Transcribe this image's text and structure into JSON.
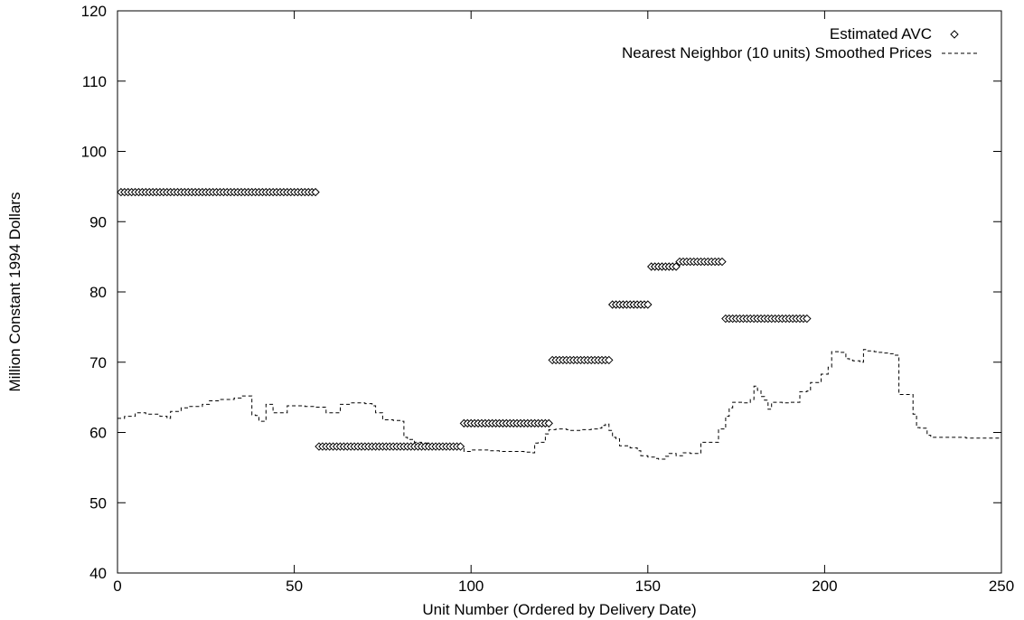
{
  "chart_data": {
    "type": "scatter",
    "title": "",
    "xlabel": "Unit Number (Ordered by Delivery Date)",
    "ylabel": "Million Constant 1994 Dollars",
    "xlim": [
      0,
      250
    ],
    "ylim": [
      40,
      120
    ],
    "xticks": [
      0,
      50,
      100,
      150,
      200,
      250
    ],
    "yticks": [
      40,
      50,
      60,
      70,
      80,
      90,
      100,
      110,
      120
    ],
    "grid": false,
    "legend_position": "top-right",
    "series": [
      {
        "name": "Estimated AVC",
        "style": "points",
        "marker": "diamond",
        "segments": [
          {
            "x_start": 1,
            "x_end": 56,
            "y": 94.2
          },
          {
            "x_start": 57,
            "x_end": 97,
            "y": 58.0
          },
          {
            "x_start": 98,
            "x_end": 122,
            "y": 61.3
          },
          {
            "x_start": 123,
            "x_end": 139,
            "y": 70.3
          },
          {
            "x_start": 140,
            "x_end": 150,
            "y": 78.2
          },
          {
            "x_start": 151,
            "x_end": 158,
            "y": 83.6
          },
          {
            "x_start": 159,
            "x_end": 171,
            "y": 84.3
          },
          {
            "x_start": 172,
            "x_end": 195,
            "y": 76.2
          }
        ]
      },
      {
        "name": "Nearest Neighbor (10 units) Smoothed Prices",
        "style": "dashed-line",
        "x": [
          0,
          2,
          5,
          8,
          12,
          14,
          15,
          18,
          20,
          24,
          26,
          29,
          33,
          35,
          36,
          38,
          39,
          40,
          41,
          42,
          44,
          45,
          48,
          53,
          56,
          57,
          59,
          60,
          63,
          66,
          70,
          72,
          73,
          75,
          76,
          78,
          80,
          81,
          82,
          84,
          86,
          88,
          90,
          92,
          95,
          98,
          100,
          103,
          105,
          108,
          110,
          112,
          115,
          117,
          118,
          119,
          120,
          121,
          122,
          124,
          127,
          128,
          131,
          134,
          136,
          137,
          138,
          139,
          140,
          141,
          142,
          144,
          145,
          147,
          148,
          150,
          152,
          153,
          155,
          156,
          158,
          160,
          162,
          165,
          167,
          168,
          170,
          171,
          172,
          173,
          174,
          175,
          177,
          179,
          180,
          181,
          182,
          183,
          184,
          185,
          187,
          188,
          190,
          192,
          193,
          195,
          196,
          198,
          199,
          201,
          202,
          204,
          205,
          206,
          207,
          208,
          210,
          211,
          212,
          214,
          215,
          217,
          218,
          220,
          221,
          223,
          224,
          225,
          226,
          227,
          229,
          230,
          235,
          240,
          245,
          250
        ],
        "y": [
          62.0,
          62.3,
          62.8,
          62.6,
          62.3,
          62.0,
          63.0,
          63.5,
          63.7,
          64.0,
          64.5,
          64.7,
          64.9,
          65.2,
          65.2,
          62.5,
          62.4,
          61.6,
          61.6,
          64.0,
          62.8,
          62.8,
          63.8,
          63.7,
          63.6,
          63.6,
          62.8,
          62.8,
          64.0,
          64.2,
          64.1,
          63.8,
          62.8,
          61.8,
          61.8,
          61.7,
          61.6,
          59.3,
          59.0,
          58.6,
          58.5,
          58.3,
          58.2,
          58.1,
          57.9,
          57.3,
          57.5,
          57.5,
          57.4,
          57.3,
          57.3,
          57.3,
          57.2,
          57.1,
          58.5,
          58.6,
          58.6,
          59.8,
          60.4,
          60.5,
          60.4,
          60.3,
          60.4,
          60.5,
          60.6,
          61.0,
          61.2,
          60.3,
          59.3,
          59.1,
          58.1,
          58.1,
          57.8,
          57.4,
          56.7,
          56.5,
          56.3,
          56.2,
          56.6,
          57.0,
          56.7,
          57.1,
          57.0,
          58.6,
          58.6,
          58.6,
          60.5,
          60.5,
          62.3,
          63.5,
          64.3,
          64.3,
          64.2,
          64.7,
          66.6,
          66.0,
          65.1,
          64.6,
          63.3,
          64.3,
          64.3,
          64.2,
          64.3,
          64.3,
          65.8,
          65.9,
          67.1,
          67.1,
          68.3,
          69.3,
          71.5,
          71.4,
          71.4,
          70.5,
          70.3,
          70.2,
          70.0,
          71.8,
          71.6,
          71.5,
          71.4,
          71.3,
          71.2,
          71.0,
          65.4,
          65.4,
          65.4,
          62.6,
          60.7,
          60.6,
          59.6,
          59.3,
          59.3,
          59.2,
          59.2,
          59.1
        ]
      }
    ]
  }
}
